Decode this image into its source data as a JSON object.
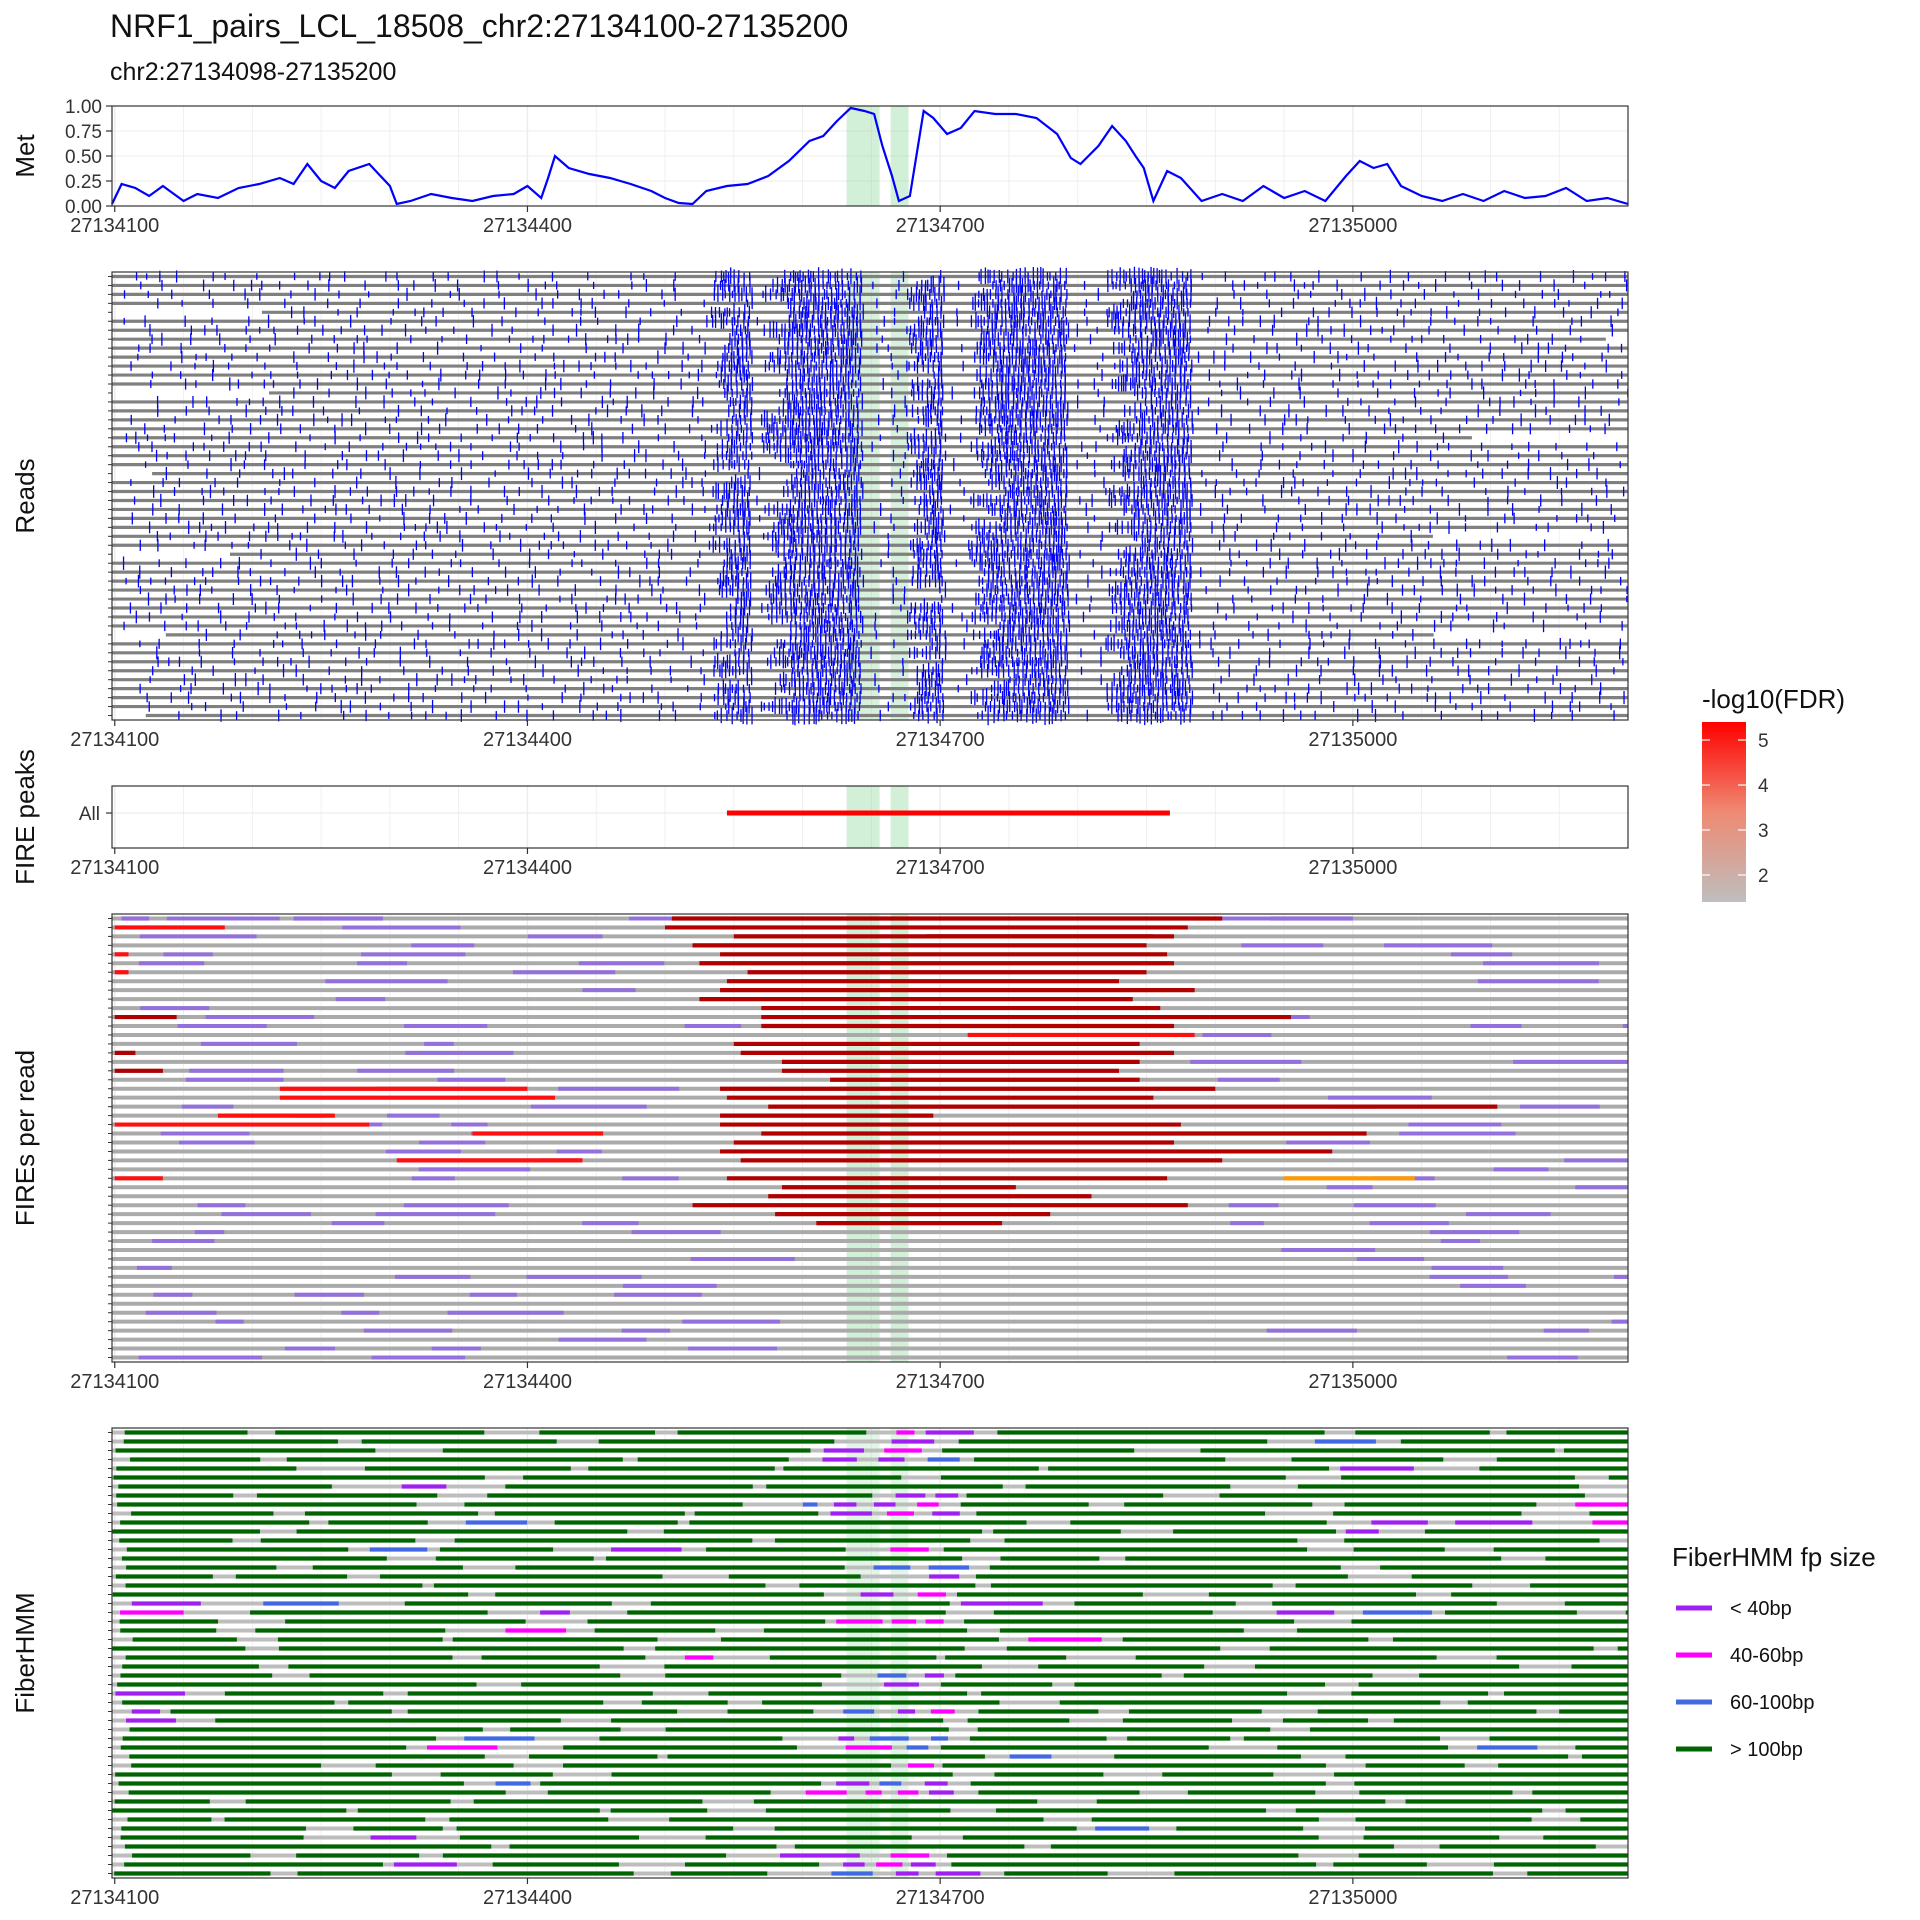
{
  "title": "NRF1_pairs_LCL_18508_chr2:27134100-27135200",
  "subtitle": "chr2:27134098-27135200",
  "chart_data": {
    "type": "multi-panel genome track",
    "x_range": [
      27134098,
      27135200
    ],
    "x_ticks": [
      27134100,
      27134400,
      27134700,
      27135000
    ],
    "x_tick_labels": [
      "27134100",
      "27134400",
      "27134700",
      "27135000"
    ],
    "highlight_regions": [
      [
        27134632,
        27134656
      ],
      [
        27134664,
        27134677
      ]
    ],
    "panels": [
      {
        "name": "met",
        "ylabel": "Met",
        "ylim": [
          0,
          1
        ],
        "y_ticks": [
          0,
          0.25,
          0.5,
          0.75,
          1
        ],
        "y_tick_labels": [
          "0.00",
          "0.25",
          "0.50",
          "0.75",
          "1.00"
        ],
        "line_color": "#0000ff",
        "points": [
          [
            27134098,
            0.02
          ],
          [
            27134105,
            0.22
          ],
          [
            27134115,
            0.18
          ],
          [
            27134125,
            0.1
          ],
          [
            27134135,
            0.2
          ],
          [
            27134150,
            0.05
          ],
          [
            27134160,
            0.12
          ],
          [
            27134175,
            0.08
          ],
          [
            27134190,
            0.18
          ],
          [
            27134205,
            0.22
          ],
          [
            27134220,
            0.28
          ],
          [
            27134230,
            0.22
          ],
          [
            27134240,
            0.42
          ],
          [
            27134250,
            0.25
          ],
          [
            27134260,
            0.18
          ],
          [
            27134270,
            0.35
          ],
          [
            27134285,
            0.42
          ],
          [
            27134300,
            0.2
          ],
          [
            27134305,
            0.02
          ],
          [
            27134315,
            0.05
          ],
          [
            27134330,
            0.12
          ],
          [
            27134345,
            0.08
          ],
          [
            27134360,
            0.05
          ],
          [
            27134375,
            0.1
          ],
          [
            27134390,
            0.12
          ],
          [
            27134400,
            0.2
          ],
          [
            27134410,
            0.08
          ],
          [
            27134415,
            0.28
          ],
          [
            27134420,
            0.5
          ],
          [
            27134430,
            0.38
          ],
          [
            27134445,
            0.32
          ],
          [
            27134460,
            0.28
          ],
          [
            27134475,
            0.22
          ],
          [
            27134490,
            0.15
          ],
          [
            27134500,
            0.08
          ],
          [
            27134510,
            0.03
          ],
          [
            27134520,
            0.02
          ],
          [
            27134530,
            0.15
          ],
          [
            27134545,
            0.2
          ],
          [
            27134560,
            0.22
          ],
          [
            27134575,
            0.3
          ],
          [
            27134590,
            0.45
          ],
          [
            27134605,
            0.65
          ],
          [
            27134615,
            0.7
          ],
          [
            27134625,
            0.85
          ],
          [
            27134635,
            0.98
          ],
          [
            27134645,
            0.95
          ],
          [
            27134652,
            0.92
          ],
          [
            27134658,
            0.6
          ],
          [
            27134665,
            0.3
          ],
          [
            27134670,
            0.05
          ],
          [
            27134678,
            0.1
          ],
          [
            27134688,
            0.95
          ],
          [
            27134695,
            0.88
          ],
          [
            27134705,
            0.72
          ],
          [
            27134715,
            0.78
          ],
          [
            27134725,
            0.95
          ],
          [
            27134740,
            0.92
          ],
          [
            27134755,
            0.92
          ],
          [
            27134770,
            0.88
          ],
          [
            27134785,
            0.72
          ],
          [
            27134795,
            0.48
          ],
          [
            27134802,
            0.42
          ],
          [
            27134815,
            0.6
          ],
          [
            27134825,
            0.8
          ],
          [
            27134835,
            0.65
          ],
          [
            27134842,
            0.5
          ],
          [
            27134848,
            0.38
          ],
          [
            27134855,
            0.05
          ],
          [
            27134865,
            0.35
          ],
          [
            27134875,
            0.28
          ],
          [
            27134890,
            0.05
          ],
          [
            27134905,
            0.12
          ],
          [
            27134920,
            0.05
          ],
          [
            27134935,
            0.2
          ],
          [
            27134950,
            0.08
          ],
          [
            27134965,
            0.15
          ],
          [
            27134980,
            0.05
          ],
          [
            27134995,
            0.3
          ],
          [
            27135005,
            0.45
          ],
          [
            27135015,
            0.38
          ],
          [
            27135025,
            0.42
          ],
          [
            27135035,
            0.2
          ],
          [
            27135050,
            0.1
          ],
          [
            27135065,
            0.05
          ],
          [
            27135080,
            0.12
          ],
          [
            27135095,
            0.05
          ],
          [
            27135110,
            0.15
          ],
          [
            27135125,
            0.08
          ],
          [
            27135140,
            0.1
          ],
          [
            27135155,
            0.18
          ],
          [
            27135170,
            0.05
          ],
          [
            27135185,
            0.08
          ],
          [
            27135200,
            0.02
          ]
        ]
      },
      {
        "name": "reads",
        "ylabel": "Reads",
        "rows": 50,
        "track_color": "#808080",
        "mark_color": "#0000ff",
        "dense_intervals": [
          [
            27134530,
            27134560
          ],
          [
            27134570,
            27134640
          ],
          [
            27134675,
            27134700
          ],
          [
            27134720,
            27134790
          ],
          [
            27134820,
            27134880
          ]
        ]
      },
      {
        "name": "fire_peaks",
        "ylabel": "FIRE peaks",
        "y_categories": [
          "All"
        ],
        "peaks": [
          {
            "category": "All",
            "start": 27134545,
            "end": 27134867
          }
        ]
      },
      {
        "name": "fires_per_read",
        "ylabel": "FIREs per read",
        "rows": 50,
        "segments": [
          {
            "row": 0,
            "start": 27134105,
            "end": 27134125,
            "type": "lowfire"
          },
          {
            "row": 0,
            "start": 27134230,
            "end": 27134295,
            "type": "lowfire"
          },
          {
            "row": 0,
            "start": 27134505,
            "end": 27134905,
            "type": "fire_strong"
          },
          {
            "row": 0,
            "start": 27134940,
            "end": 27135000,
            "type": "lowfire"
          },
          {
            "row": 1,
            "start": 27134100,
            "end": 27134180,
            "type": "fire"
          },
          {
            "row": 1,
            "start": 27134500,
            "end": 27134880,
            "type": "fire_strong"
          },
          {
            "row": 2,
            "start": 27134550,
            "end": 27134855,
            "type": "fire_strong"
          },
          {
            "row": 2,
            "start": 27134690,
            "end": 27134870,
            "type": "fire_strong"
          },
          {
            "row": 3,
            "start": 27134520,
            "end": 27134850,
            "type": "fire_strong"
          },
          {
            "row": 4,
            "start": 27134540,
            "end": 27134865,
            "type": "fire_strong"
          },
          {
            "row": 4,
            "start": 27134100,
            "end": 27134110,
            "type": "fire"
          },
          {
            "row": 5,
            "start": 27134525,
            "end": 27134870,
            "type": "fire_strong"
          },
          {
            "row": 6,
            "start": 27134100,
            "end": 27134110,
            "type": "fire"
          },
          {
            "row": 6,
            "start": 27134560,
            "end": 27134850,
            "type": "fire_strong"
          },
          {
            "row": 7,
            "start": 27134545,
            "end": 27134830,
            "type": "fire_strong"
          },
          {
            "row": 8,
            "start": 27134540,
            "end": 27134885,
            "type": "fire_strong"
          },
          {
            "row": 9,
            "start": 27134525,
            "end": 27134840,
            "type": "fire_strong"
          },
          {
            "row": 10,
            "start": 27134570,
            "end": 27134860,
            "type": "fire_strong"
          },
          {
            "row": 11,
            "start": 27134100,
            "end": 27134145,
            "type": "fire_strong"
          },
          {
            "row": 11,
            "start": 27134570,
            "end": 27134955,
            "type": "fire_strong"
          },
          {
            "row": 12,
            "start": 27134570,
            "end": 27134870,
            "type": "fire_strong"
          },
          {
            "row": 13,
            "start": 27134720,
            "end": 27134885,
            "type": "fire"
          },
          {
            "row": 14,
            "start": 27134550,
            "end": 27134845,
            "type": "fire_strong"
          },
          {
            "row": 15,
            "start": 27134100,
            "end": 27134115,
            "type": "fire_strong"
          },
          {
            "row": 15,
            "start": 27134555,
            "end": 27134870,
            "type": "fire_strong"
          },
          {
            "row": 16,
            "start": 27134585,
            "end": 27134845,
            "type": "fire_strong"
          },
          {
            "row": 17,
            "start": 27134100,
            "end": 27134135,
            "type": "fire_strong"
          },
          {
            "row": 17,
            "start": 27134585,
            "end": 27134830,
            "type": "fire_strong"
          },
          {
            "row": 18,
            "start": 27134620,
            "end": 27134845,
            "type": "fire_strong"
          },
          {
            "row": 19,
            "start": 27134220,
            "end": 27134400,
            "type": "fire"
          },
          {
            "row": 19,
            "start": 27134540,
            "end": 27134900,
            "type": "fire_strong"
          },
          {
            "row": 20,
            "start": 27134220,
            "end": 27134420,
            "type": "fire"
          },
          {
            "row": 20,
            "start": 27134545,
            "end": 27134855,
            "type": "fire_strong"
          },
          {
            "row": 21,
            "start": 27134575,
            "end": 27135105,
            "type": "fire_strong"
          },
          {
            "row": 22,
            "start": 27134175,
            "end": 27134260,
            "type": "fire"
          },
          {
            "row": 22,
            "start": 27134540,
            "end": 27134695,
            "type": "fire_strong"
          },
          {
            "row": 23,
            "start": 27134100,
            "end": 27134285,
            "type": "fire"
          },
          {
            "row": 23,
            "start": 27134540,
            "end": 27134875,
            "type": "fire_strong"
          },
          {
            "row": 24,
            "start": 27134360,
            "end": 27134455,
            "type": "fire"
          },
          {
            "row": 24,
            "start": 27134570,
            "end": 27135010,
            "type": "fire_strong"
          },
          {
            "row": 25,
            "start": 27134550,
            "end": 27134870,
            "type": "fire_strong"
          },
          {
            "row": 26,
            "start": 27134540,
            "end": 27134985,
            "type": "fire_strong"
          },
          {
            "row": 27,
            "start": 27134305,
            "end": 27134440,
            "type": "fire"
          },
          {
            "row": 27,
            "start": 27134555,
            "end": 27134905,
            "type": "fire_strong"
          },
          {
            "row": 29,
            "start": 27134100,
            "end": 27134135,
            "type": "fire"
          },
          {
            "row": 29,
            "start": 27134545,
            "end": 27134865,
            "type": "fire_strong"
          },
          {
            "row": 29,
            "start": 27134950,
            "end": 27135045,
            "type": "highfire"
          },
          {
            "row": 30,
            "start": 27134585,
            "end": 27134755,
            "type": "fire_strong"
          },
          {
            "row": 31,
            "start": 27134575,
            "end": 27134810,
            "type": "fire_strong"
          },
          {
            "row": 32,
            "start": 27134520,
            "end": 27134880,
            "type": "fire_strong"
          },
          {
            "row": 33,
            "start": 27134580,
            "end": 27134780,
            "type": "fire_strong"
          },
          {
            "row": 34,
            "start": 27134610,
            "end": 27134745,
            "type": "fire_strong"
          }
        ]
      },
      {
        "name": "fiberhmm",
        "ylabel": "FiberHMM",
        "rows": 50,
        "legend_title": "FiberHMM fp size",
        "legend": [
          {
            "label": "< 40bp",
            "color": "#a020f0"
          },
          {
            "label": "40-60bp",
            "color": "#ff00ff"
          },
          {
            "label": "60-100bp",
            "color": "#4169e1"
          },
          {
            "label": "> 100bp",
            "color": "#006400"
          }
        ]
      }
    ],
    "colorbar": {
      "title": "-log10(FDR)",
      "ticks": [
        2,
        3,
        4,
        5
      ],
      "tick_labels": [
        "2",
        "3",
        "4",
        "5"
      ],
      "range": [
        1.4,
        5.4
      ],
      "low_color": "#bebebe",
      "high_color": "#ff0000"
    },
    "grid": true,
    "legend_position": "right"
  }
}
